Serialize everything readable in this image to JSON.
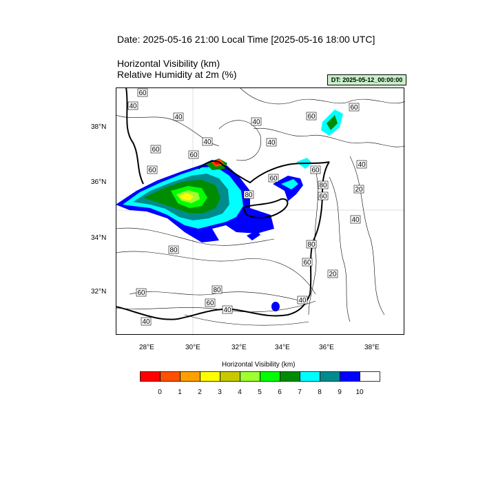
{
  "header": {
    "title": "Date: 2025-05-16  21:00 Local Time [2025-05-16  18:00 UTC]",
    "variable_1": "Horizontal Visibility   (km)",
    "variable_2": "Relative Humidity at 2m   (%)",
    "dt_label": "DT: 2025-05-12_00:00:00"
  },
  "map": {
    "lat_labels": [
      "38°N",
      "36°N",
      "34°N",
      "32°N"
    ],
    "lon_labels": [
      "28°E",
      "30°E",
      "32°E",
      "34°E",
      "36°E",
      "38°E"
    ],
    "rh_contour_labels": [
      "60",
      "40",
      "40",
      "40",
      "40",
      "60",
      "60",
      "60",
      "60",
      "60",
      "40",
      "20",
      "60",
      "80",
      "80",
      "60",
      "60",
      "40",
      "80",
      "80",
      "60",
      "20",
      "60",
      "80",
      "60",
      "40",
      "40",
      "40",
      "40"
    ]
  },
  "colorbar": {
    "title": "Horizontal Visibility  (km)",
    "levels": [
      "0",
      "1",
      "2",
      "3",
      "4",
      "5",
      "6",
      "7",
      "8",
      "9",
      "10"
    ],
    "colors": [
      "#ff0000",
      "#ff5000",
      "#ffa000",
      "#ffff00",
      "#c8c800",
      "#a0ff30",
      "#00ff00",
      "#008c00",
      "#00ffff",
      "#008c8c",
      "#0000ff",
      "#ffffff"
    ]
  }
}
